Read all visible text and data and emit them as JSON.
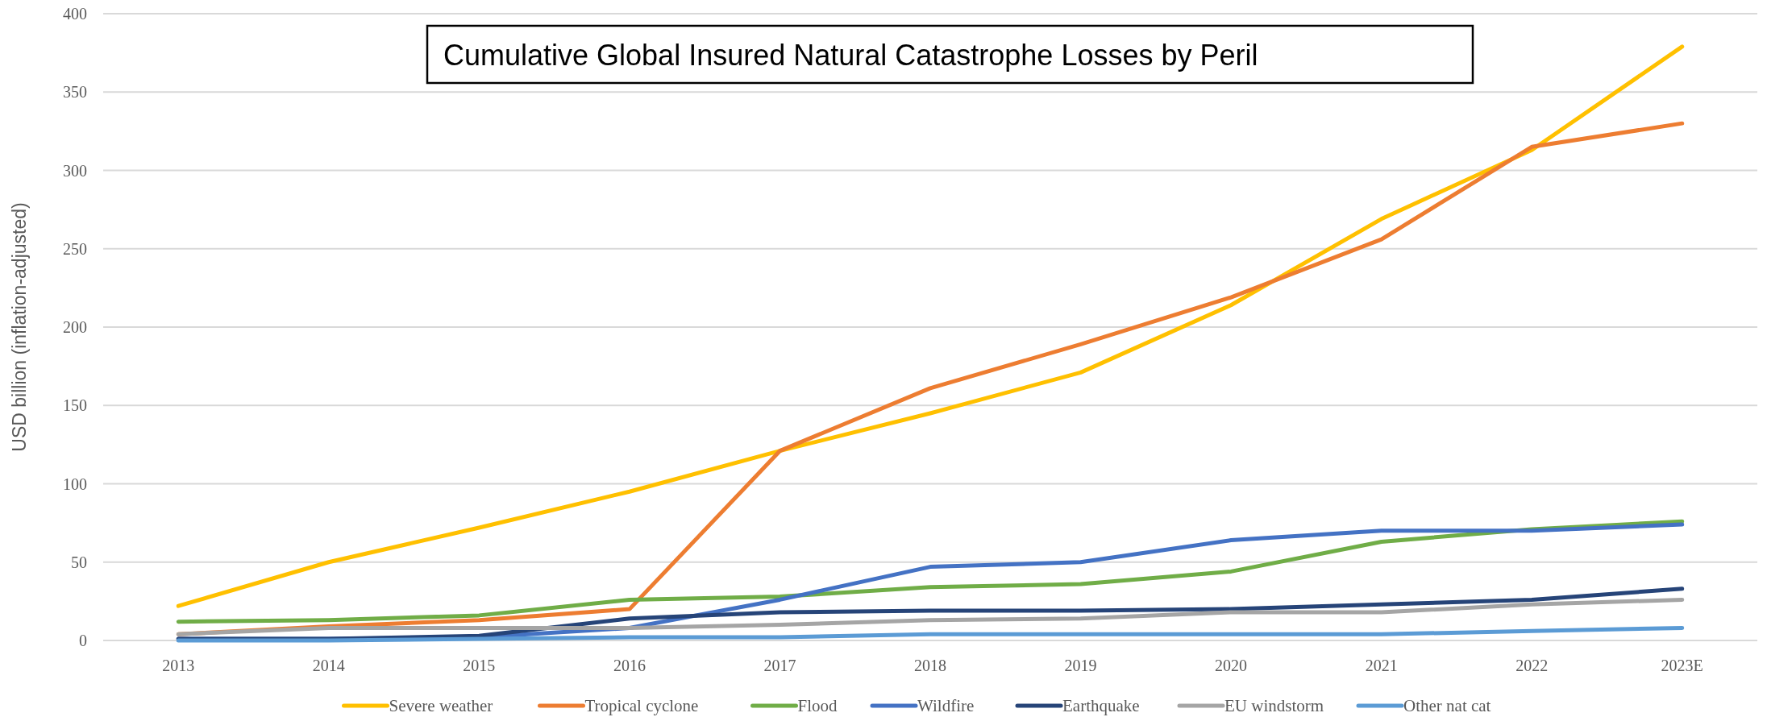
{
  "chart_data": {
    "type": "line",
    "title": "Cumulative Global Insured Natural Catastrophe Losses by Peril",
    "ylabel": "USD billion (inflation-adjusted)",
    "categories": [
      "2013",
      "2014",
      "2015",
      "2016",
      "2017",
      "2018",
      "2019",
      "2020",
      "2021",
      "2022",
      "2023E"
    ],
    "series": [
      {
        "name": "Severe weather",
        "color": "#ffc000",
        "values": [
          22,
          50,
          72,
          95,
          121,
          145,
          171,
          214,
          269,
          313,
          379
        ]
      },
      {
        "name": "Tropical cyclone",
        "color": "#ed7d31",
        "values": [
          4,
          9,
          13,
          20,
          121,
          161,
          189,
          219,
          256,
          315,
          330
        ]
      },
      {
        "name": "Flood",
        "color": "#70ad47",
        "values": [
          12,
          13,
          16,
          26,
          28,
          34,
          36,
          44,
          63,
          71,
          76
        ]
      },
      {
        "name": "Wildfire",
        "color": "#4472c4",
        "values": [
          1,
          1,
          2,
          8,
          26,
          47,
          50,
          64,
          70,
          70,
          74
        ]
      },
      {
        "name": "Earthquake",
        "color": "#264478",
        "values": [
          1,
          1,
          3,
          14,
          18,
          19,
          19,
          20,
          23,
          26,
          33
        ]
      },
      {
        "name": "EU windstorm",
        "color": "#a5a5a5",
        "values": [
          4,
          8,
          8,
          8,
          10,
          13,
          14,
          18,
          18,
          23,
          26
        ]
      },
      {
        "name": "Other nat cat",
        "color": "#5b9bd5",
        "values": [
          0,
          0,
          1,
          2,
          2,
          4,
          4,
          4,
          4,
          6,
          8
        ]
      }
    ],
    "ylim": [
      0,
      400
    ],
    "yticks": [
      0,
      50,
      100,
      150,
      200,
      250,
      300,
      350,
      400
    ],
    "grid": "y",
    "legend": "bottom",
    "marker": "none",
    "line_style": "solid"
  }
}
